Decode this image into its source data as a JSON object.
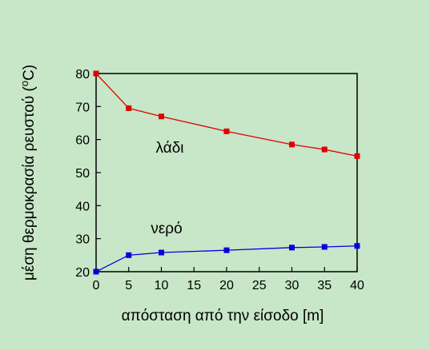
{
  "chart_data": {
    "type": "line",
    "title": "",
    "xlabel": "απόσταση από την είσοδο [m]",
    "ylabel": "μέση θερμοκρασία ρευστού (",
    "ylabel_sup": "o",
    "ylabel_tail": "C)",
    "xlim": [
      0,
      40
    ],
    "ylim": [
      20,
      80
    ],
    "xticks": [
      0,
      5,
      10,
      15,
      20,
      25,
      30,
      35,
      40
    ],
    "yticks": [
      20,
      30,
      40,
      50,
      60,
      70,
      80
    ],
    "grid": false,
    "series": [
      {
        "name": "λάδι",
        "color": "#e00000",
        "x": [
          0,
          5,
          10,
          20,
          30,
          35,
          40
        ],
        "y": [
          80,
          69.5,
          67,
          62.5,
          58.5,
          57,
          55
        ]
      },
      {
        "name": "νερό",
        "color": "#0000e0",
        "x": [
          0,
          5,
          10,
          20,
          30,
          35,
          40
        ],
        "y": [
          20,
          25,
          25.8,
          26.5,
          27.3,
          27.5,
          27.8
        ]
      }
    ]
  }
}
